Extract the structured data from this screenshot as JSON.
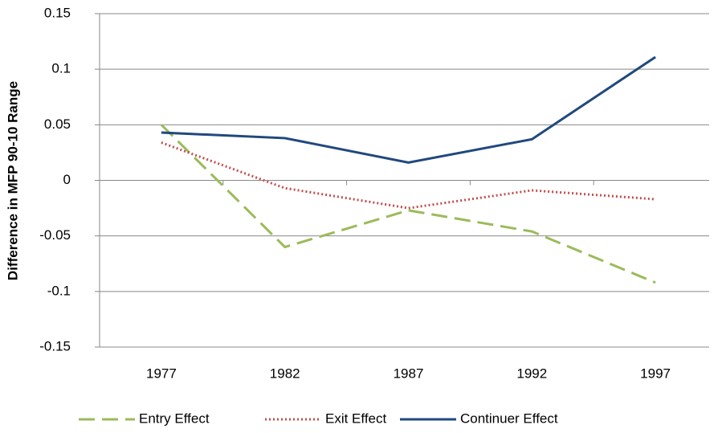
{
  "chart_data": {
    "type": "line",
    "y_label": "Difference in MFP 90-10 Range",
    "categories": [
      "1977",
      "1982",
      "1987",
      "1992",
      "1997"
    ],
    "series": [
      {
        "name": "Entry Effect",
        "color": "#9bbb59",
        "dash": "dashed",
        "values": [
          0.05,
          -0.06,
          -0.027,
          -0.046,
          -0.092
        ]
      },
      {
        "name": "Exit Effect",
        "color": "#c0504d",
        "dash": "dotted",
        "values": [
          0.034,
          -0.007,
          -0.025,
          -0.009,
          -0.017
        ]
      },
      {
        "name": "Continuer Effect",
        "color": "#1f497d",
        "dash": "solid",
        "values": [
          0.043,
          0.038,
          0.016,
          0.037,
          0.111
        ]
      }
    ],
    "ylim": [
      -0.15,
      0.15
    ],
    "yticks": [
      -0.15,
      -0.1,
      -0.05,
      0,
      0.05,
      0.1,
      0.15
    ],
    "grid": true,
    "legend": "bottom"
  }
}
